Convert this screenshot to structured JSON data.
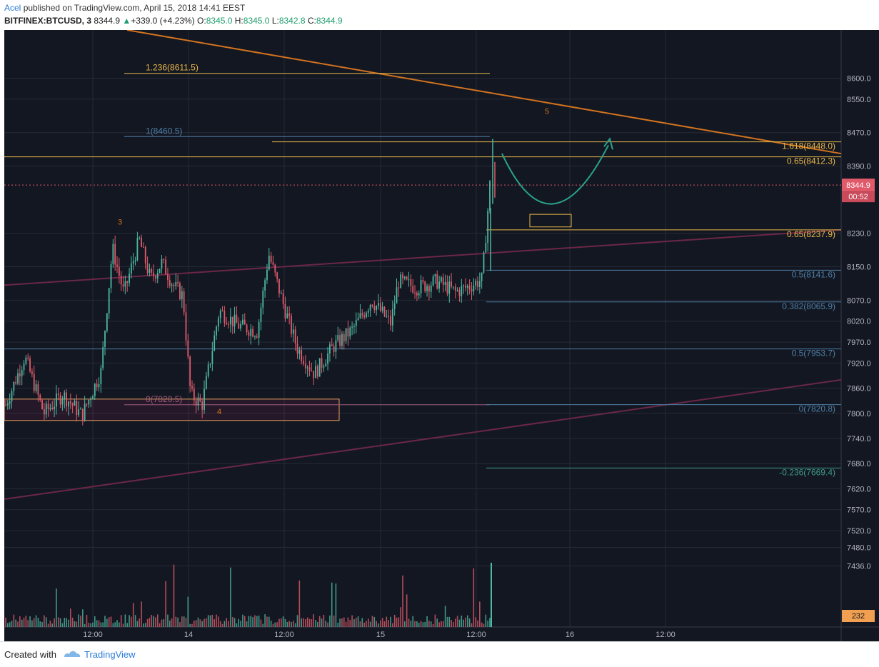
{
  "header": {
    "author": "Acel",
    "published": "published on TradingView.com, April 15, 2018 14:41 EEST",
    "symbol": "BITFINEX:BTCUSD, 3",
    "price": "8344.9",
    "change": "+339.0 (+4.23%)",
    "o_label": "O:",
    "o_value": "8345.0",
    "h_label": "H:",
    "h_value": "8345.0",
    "l_label": "L:",
    "l_value": "8342.8",
    "c_label": "C:",
    "c_value": "8344.9"
  },
  "footer": {
    "created_with": "Created with",
    "brand": "TradingView"
  },
  "colors": {
    "background": "#131722",
    "grid": "#262a36",
    "up": "#4db8a0",
    "down": "#e05a6a",
    "fib_gold": "#e8b84a",
    "fib_blue": "#4f7fa6",
    "fib_green": "#3f9a86",
    "fib_pink": "#a05a78",
    "trend_orange": "#d2731f",
    "trend_purple": "#6a2746",
    "price_line": "#e05a6a",
    "projection": "#2aa38e"
  },
  "chart_data": {
    "type": "candlestick",
    "symbol": "BITFINEX:BTCUSD",
    "interval": "3",
    "ylim": [
      7290,
      8715
    ],
    "x_ticks": [
      "12:00",
      "14",
      "12:00",
      "15",
      "12:00",
      "16",
      "12:00"
    ],
    "y_ticks": [
      "8600.0",
      "8550.0",
      "8470.0",
      "8390.0",
      "8230.0",
      "8150.0",
      "8070.0",
      "8020.0",
      "7970.0",
      "7920.0",
      "7860.0",
      "7800.0",
      "7740.0",
      "7680.0",
      "7620.0",
      "7570.0",
      "7520.0",
      "7480.0",
      "7436.0"
    ],
    "last_price": "8344.9",
    "countdown": "00:52",
    "volume_label": "232",
    "wave_labels": [
      "3",
      "4",
      "5"
    ],
    "price_path": [
      {
        "t": 0,
        "p": 7820
      },
      {
        "t": 1,
        "p": 7935
      },
      {
        "t": 2,
        "p": 7800
      },
      {
        "t": 3,
        "p": 7845
      },
      {
        "t": 4,
        "p": 7795
      },
      {
        "t": 5,
        "p": 7900
      },
      {
        "t": 5.6,
        "p": 8195
      },
      {
        "t": 6.2,
        "p": 8085
      },
      {
        "t": 7,
        "p": 8215
      },
      {
        "t": 7.6,
        "p": 8120
      },
      {
        "t": 8.2,
        "p": 8160
      },
      {
        "t": 8.8,
        "p": 8105
      },
      {
        "t": 9.3,
        "p": 8080
      },
      {
        "t": 9.7,
        "p": 7845
      },
      {
        "t": 10.3,
        "p": 7820
      },
      {
        "t": 11.2,
        "p": 8045
      },
      {
        "t": 12.2,
        "p": 8010
      },
      {
        "t": 13.2,
        "p": 7995
      },
      {
        "t": 13.8,
        "p": 8180
      },
      {
        "t": 14.6,
        "p": 8055
      },
      {
        "t": 15.3,
        "p": 7955
      },
      {
        "t": 16.2,
        "p": 7895
      },
      {
        "t": 17.2,
        "p": 7960
      },
      {
        "t": 18.2,
        "p": 8000
      },
      {
        "t": 19.2,
        "p": 8070
      },
      {
        "t": 20.2,
        "p": 8015
      },
      {
        "t": 20.6,
        "p": 8115
      },
      {
        "t": 21.6,
        "p": 8100
      },
      {
        "t": 22.6,
        "p": 8115
      },
      {
        "t": 23.6,
        "p": 8090
      },
      {
        "t": 24.4,
        "p": 8105
      },
      {
        "t": 25,
        "p": 8120
      },
      {
        "t": 25.4,
        "p": 8344.9
      }
    ],
    "fib_levels": [
      {
        "label": "1.236(8611.5)",
        "value": 8611.5,
        "color": "fib_gold",
        "span": "left"
      },
      {
        "label": "1(8460.5)",
        "value": 8460.5,
        "color": "fib_blue",
        "span": "left"
      },
      {
        "label": "1.618(8448.0)",
        "value": 8448.0,
        "color": "fib_gold",
        "span": "right"
      },
      {
        "label": "0.65(8412.3)",
        "value": 8412.3,
        "color": "fib_gold",
        "span": "full"
      },
      {
        "label": "0.65(8237.9)",
        "value": 8237.9,
        "color": "fib_gold",
        "span": "right"
      },
      {
        "label": "0.5(8141.6)",
        "value": 8141.6,
        "color": "fib_blue",
        "span": "right"
      },
      {
        "label": "0.382(8065.9)",
        "value": 8065.9,
        "color": "fib_blue",
        "span": "right"
      },
      {
        "label": "0.5(7953.7)",
        "value": 7953.7,
        "color": "fib_blue",
        "span": "full"
      },
      {
        "label": "0(7820.5)",
        "value": 7820.5,
        "color": "fib_pink",
        "span": "left"
      },
      {
        "label": "0(7820.8)",
        "value": 7820.8,
        "color": "fib_blue",
        "span": "right"
      },
      {
        "label": "-0.236(7669.4)",
        "value": 7669.4,
        "color": "fib_green",
        "span": "right"
      }
    ]
  }
}
